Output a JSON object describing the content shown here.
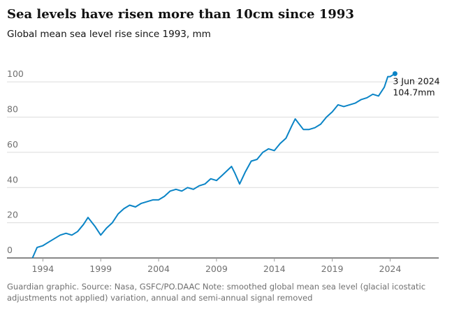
{
  "chart_data": {
    "type": "line",
    "title": "Sea levels have risen more than 10cm since 1993",
    "subtitle": "Global mean sea level rise since 1993, mm",
    "caption": [
      "Guardian graphic. Source: Nasa, GSFC/PO.DAAC Note: smoothed global mean sea level (glacial icostatic",
      "adjustments not applied) variation, annual and semi-annual signal removed"
    ],
    "annotation": {
      "date": "3 Jun 2024",
      "value_label": "104.7mm"
    },
    "x": [
      1993.1,
      1993.5,
      1994,
      1994.5,
      1995,
      1995.5,
      1996,
      1996.5,
      1997,
      1997.5,
      1997.9,
      1998.5,
      1999,
      1999.5,
      2000,
      2000.5,
      2001,
      2001.5,
      2002,
      2002.5,
      2003,
      2003.5,
      2004,
      2004.5,
      2005,
      2005.5,
      2006,
      2006.5,
      2007,
      2007.5,
      2008,
      2008.5,
      2009,
      2009.5,
      2010.3,
      2010.6,
      2011,
      2011.5,
      2012,
      2012.5,
      2013,
      2013.5,
      2014,
      2014.5,
      2015,
      2015.5,
      2015.8,
      2016.5,
      2017,
      2017.5,
      2018,
      2018.5,
      2019,
      2019.5,
      2020,
      2020.5,
      2021,
      2021.5,
      2022,
      2022.5,
      2023,
      2023.5,
      2023.8,
      2024,
      2024.42
    ],
    "series": [
      {
        "name": "Global mean sea level",
        "color": "#0a84c6",
        "values": [
          0,
          6,
          7,
          9,
          11,
          13,
          14,
          13,
          15,
          19,
          23,
          18,
          13,
          17,
          20,
          25,
          28,
          30,
          29,
          31,
          32,
          33,
          33,
          35,
          38,
          39,
          38,
          40,
          39,
          41,
          42,
          45,
          44,
          47,
          52,
          48,
          42,
          49,
          55,
          56,
          60,
          62,
          61,
          65,
          68,
          75,
          79,
          73,
          73,
          74,
          76,
          80,
          83,
          87,
          86,
          87,
          88,
          90,
          91,
          93,
          92,
          97,
          103,
          103,
          104.7
        ]
      }
    ],
    "xlim": [
      1990.9,
      2028.2
    ],
    "xticks": [
      1994,
      1999,
      2004,
      2009,
      2014,
      2019,
      2024
    ],
    "ylim": [
      0,
      110
    ],
    "yticks": [
      0,
      20,
      40,
      60,
      80,
      100
    ],
    "grid": true
  }
}
